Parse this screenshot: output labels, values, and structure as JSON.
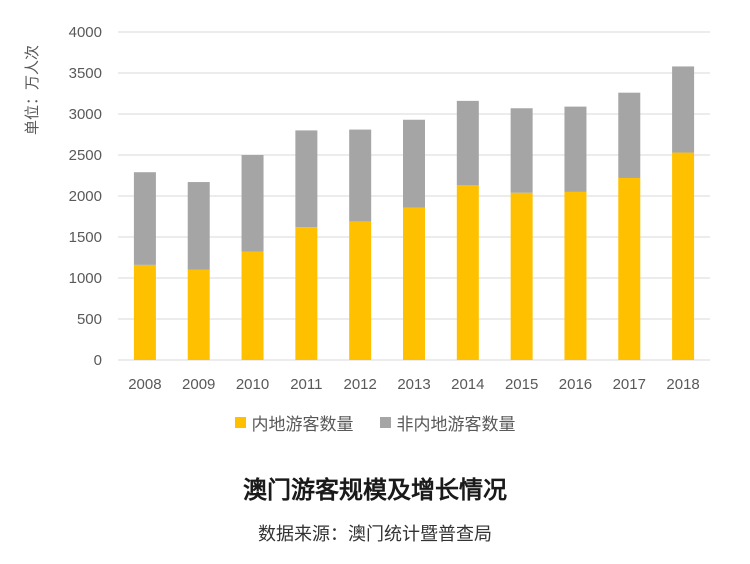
{
  "chart_data": {
    "type": "bar",
    "stacked": true,
    "title": "澳门游客规模及增长情况",
    "source": "数据来源：澳门统计暨普查局",
    "ylabel": "单位：万人次",
    "xlabel": "",
    "ylim": [
      0,
      4000
    ],
    "yticks": [
      0,
      500,
      1000,
      1500,
      2000,
      2500,
      3000,
      3500,
      4000
    ],
    "grid": true,
    "legend_position": "bottom",
    "categories": [
      "2008",
      "2009",
      "2010",
      "2011",
      "2012",
      "2013",
      "2014",
      "2015",
      "2016",
      "2017",
      "2018"
    ],
    "series": [
      {
        "name": "内地游客数量",
        "color": "#FFC000",
        "values": [
          1160,
          1100,
          1320,
          1620,
          1690,
          1860,
          2130,
          2040,
          2050,
          2220,
          2530
        ]
      },
      {
        "name": "非内地游客数量",
        "color": "#A5A5A5",
        "values": [
          1130,
          1070,
          1180,
          1180,
          1120,
          1070,
          1030,
          1030,
          1040,
          1040,
          1050
        ]
      }
    ]
  }
}
